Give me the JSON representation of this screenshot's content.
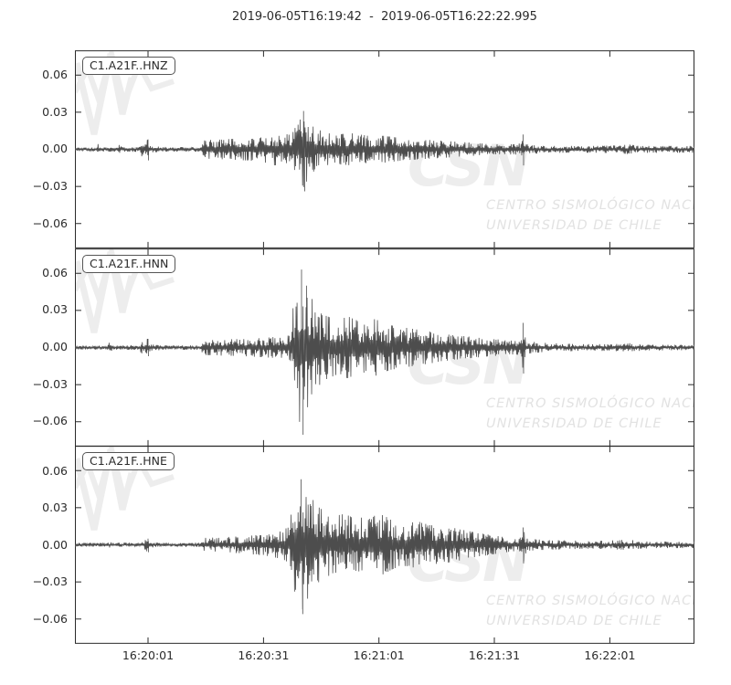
{
  "title": "2019-06-05T16:19:42  -  2019-06-05T16:22:22.995",
  "watermark": {
    "logo": "CSN",
    "line1": "CENTRO SISMOLÓGICO NACIONAL",
    "line2": "UNIVERSIDAD DE CHILE"
  },
  "colors": {
    "trace": "#4d4d4d",
    "axis": "#2a2a2a",
    "text": "#2b2b2b",
    "watermark_logo": "#ededed",
    "watermark_text": "#e2e2e2",
    "label_box_border": "#555555",
    "background": "#ffffff"
  },
  "chart_data": {
    "type": "line",
    "title": "2019-06-05T16:19:42 - 2019-06-05T16:22:22.995",
    "time_start": "2019-06-05T16:19:42",
    "time_end": "2019-06-05T16:22:22.995",
    "duration_s": 160.995,
    "xlabel": "",
    "ylabel": "",
    "grid": false,
    "ylim": [
      -0.08,
      0.08
    ],
    "xticks": [
      {
        "t": 19,
        "label": "16:20:01"
      },
      {
        "t": 49,
        "label": "16:20:31"
      },
      {
        "t": 79,
        "label": "16:21:01"
      },
      {
        "t": 109,
        "label": "16:21:31"
      },
      {
        "t": 139,
        "label": "16:22:01"
      }
    ],
    "yticks": [
      {
        "v": 0.06,
        "label": "0.06"
      },
      {
        "v": 0.03,
        "label": "0.03"
      },
      {
        "v": 0.0,
        "label": "0.00"
      },
      {
        "v": -0.03,
        "label": "−0.03"
      },
      {
        "v": -0.06,
        "label": "−0.06"
      }
    ],
    "series": [
      {
        "id": "C1.A21F..HNZ",
        "seed": 11,
        "peak_amplitude": 0.032,
        "envelope": [
          [
            0,
            0.0015
          ],
          [
            5.5,
            0.0015
          ],
          [
            6,
            0.0045
          ],
          [
            6.8,
            0.0016
          ],
          [
            10.8,
            0.002
          ],
          [
            11.4,
            0.004
          ],
          [
            12.2,
            0.0018
          ],
          [
            16.8,
            0.002
          ],
          [
            17.3,
            0.006
          ],
          [
            18,
            0.0025
          ],
          [
            18.8,
            0.008
          ],
          [
            19.6,
            0.0025
          ],
          [
            24,
            0.0018
          ],
          [
            32.5,
            0.0018
          ],
          [
            33.2,
            0.0075
          ],
          [
            38,
            0.008
          ],
          [
            45,
            0.009
          ],
          [
            50,
            0.011
          ],
          [
            52,
            0.013
          ],
          [
            54,
            0.011
          ],
          [
            56,
            0.013
          ],
          [
            58,
            0.02
          ],
          [
            59.5,
            0.032
          ],
          [
            60.5,
            0.024
          ],
          [
            62,
            0.018
          ],
          [
            64,
            0.015
          ],
          [
            68,
            0.012
          ],
          [
            72,
            0.013
          ],
          [
            76,
            0.011
          ],
          [
            80,
            0.011
          ],
          [
            85,
            0.009
          ],
          [
            90,
            0.008
          ],
          [
            95,
            0.007
          ],
          [
            100,
            0.006
          ],
          [
            105,
            0.005
          ],
          [
            110,
            0.0045
          ],
          [
            114,
            0.004
          ],
          [
            116,
            0.005
          ],
          [
            116.5,
            0.013
          ],
          [
            117.2,
            0.004
          ],
          [
            122,
            0.003
          ],
          [
            128,
            0.0028
          ],
          [
            136,
            0.0028
          ],
          [
            142,
            0.0032
          ],
          [
            144,
            0.004
          ],
          [
            146,
            0.003
          ],
          [
            152,
            0.0028
          ],
          [
            160.995,
            0.0028
          ]
        ],
        "spikes": [
          [
            19.0,
            0.008
          ],
          [
            19.15,
            -0.009
          ],
          [
            59.4,
            0.031
          ],
          [
            59.7,
            -0.034
          ],
          [
            116.45,
            0.012
          ],
          [
            116.6,
            -0.013
          ]
        ]
      },
      {
        "id": "C1.A21F..HNN",
        "seed": 23,
        "peak_amplitude": 0.07,
        "envelope": [
          [
            0,
            0.0015
          ],
          [
            8.4,
            0.0016
          ],
          [
            9,
            0.0055
          ],
          [
            9.7,
            0.0016
          ],
          [
            16.8,
            0.002
          ],
          [
            17.3,
            0.005
          ],
          [
            18,
            0.0025
          ],
          [
            18.8,
            0.007
          ],
          [
            19.6,
            0.0025
          ],
          [
            24,
            0.0018
          ],
          [
            32.5,
            0.0018
          ],
          [
            33.2,
            0.006
          ],
          [
            38,
            0.0065
          ],
          [
            44,
            0.007
          ],
          [
            50,
            0.008
          ],
          [
            54,
            0.009
          ],
          [
            55.8,
            0.012
          ],
          [
            56.6,
            0.03
          ],
          [
            57.5,
            0.05
          ],
          [
            58.9,
            0.066
          ],
          [
            60,
            0.052
          ],
          [
            61.5,
            0.04
          ],
          [
            63,
            0.032
          ],
          [
            65,
            0.026
          ],
          [
            68,
            0.022
          ],
          [
            71,
            0.025
          ],
          [
            74,
            0.021
          ],
          [
            78,
            0.023
          ],
          [
            82,
            0.018
          ],
          [
            86,
            0.016
          ],
          [
            90,
            0.014
          ],
          [
            94,
            0.012
          ],
          [
            98,
            0.01
          ],
          [
            102,
            0.009
          ],
          [
            106,
            0.0075
          ],
          [
            110,
            0.0065
          ],
          [
            114,
            0.0055
          ],
          [
            116,
            0.006
          ],
          [
            116.5,
            0.02
          ],
          [
            117.3,
            0.005
          ],
          [
            121,
            0.004
          ],
          [
            126,
            0.0032
          ],
          [
            132,
            0.0027
          ],
          [
            140,
            0.0027
          ],
          [
            143.5,
            0.0038
          ],
          [
            146,
            0.0027
          ],
          [
            154,
            0.0022
          ],
          [
            160.995,
            0.0022
          ]
        ],
        "spikes": [
          [
            19.0,
            0.007
          ],
          [
            19.15,
            -0.007
          ],
          [
            58.9,
            0.063
          ],
          [
            59.3,
            -0.0705
          ],
          [
            60.2,
            0.05
          ],
          [
            116.45,
            0.02
          ],
          [
            116.6,
            -0.021
          ]
        ]
      },
      {
        "id": "C1.A21F..HNE",
        "seed": 37,
        "peak_amplitude": 0.056,
        "envelope": [
          [
            0,
            0.0015
          ],
          [
            8.4,
            0.0015
          ],
          [
            9,
            0.003
          ],
          [
            9.7,
            0.0015
          ],
          [
            16.8,
            0.0018
          ],
          [
            18.8,
            0.0055
          ],
          [
            19.6,
            0.0022
          ],
          [
            24,
            0.0017
          ],
          [
            32.5,
            0.0017
          ],
          [
            33.2,
            0.0055
          ],
          [
            38,
            0.006
          ],
          [
            44,
            0.007
          ],
          [
            50,
            0.009
          ],
          [
            53,
            0.011
          ],
          [
            55.5,
            0.014
          ],
          [
            56.5,
            0.03
          ],
          [
            57.6,
            0.045
          ],
          [
            58.8,
            0.054
          ],
          [
            60,
            0.048
          ],
          [
            61.5,
            0.038
          ],
          [
            63,
            0.031
          ],
          [
            65,
            0.027
          ],
          [
            67,
            0.023
          ],
          [
            70,
            0.025
          ],
          [
            73,
            0.021
          ],
          [
            76,
            0.023
          ],
          [
            80,
            0.024
          ],
          [
            83,
            0.019
          ],
          [
            86,
            0.017
          ],
          [
            89,
            0.019
          ],
          [
            92,
            0.016
          ],
          [
            95,
            0.015
          ],
          [
            98,
            0.014
          ],
          [
            101,
            0.012
          ],
          [
            104,
            0.01
          ],
          [
            108,
            0.008
          ],
          [
            112,
            0.006
          ],
          [
            116,
            0.006
          ],
          [
            116.5,
            0.015
          ],
          [
            117.3,
            0.005
          ],
          [
            122,
            0.004
          ],
          [
            128,
            0.0036
          ],
          [
            134,
            0.003
          ],
          [
            140,
            0.0036
          ],
          [
            144,
            0.0042
          ],
          [
            147,
            0.003
          ],
          [
            154,
            0.0026
          ],
          [
            160.995,
            0.0026
          ]
        ],
        "spikes": [
          [
            19.0,
            0.005
          ],
          [
            19.15,
            -0.006
          ],
          [
            58.8,
            0.053
          ],
          [
            59.2,
            -0.056
          ],
          [
            116.45,
            0.014
          ],
          [
            116.6,
            -0.015
          ]
        ]
      }
    ]
  }
}
